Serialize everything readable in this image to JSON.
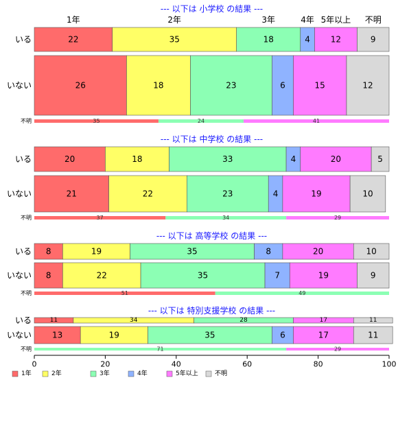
{
  "chart_data": {
    "type": "bar",
    "orientation": "horizontal",
    "stacked": "percent",
    "x_axis": {
      "range": [
        0,
        100
      ],
      "ticks": [
        "0",
        "20",
        "40",
        "60",
        "80",
        "100"
      ]
    },
    "grid": false,
    "categories": [
      "1年",
      "2年",
      "3年",
      "4年",
      "5年以上",
      "不明"
    ],
    "colors": [
      "#ff6b6b",
      "#ffff66",
      "#8cffb4",
      "#8fb3ff",
      "#ff7bff",
      "#d9d9d9"
    ],
    "legend": {
      "position": "bottom-left",
      "labels": [
        "1年",
        "2年",
        "3年",
        "4年",
        "5年以上",
        "不明"
      ]
    },
    "top_labels": [
      "1年",
      "2年",
      "3年",
      "4年",
      "5年以上",
      "不明"
    ],
    "panels": [
      {
        "title": "--- 以下は 小学校 の結果 ---",
        "rows": [
          {
            "label": "いる",
            "weight": 0.91,
            "values": [
              22,
              35,
              18,
              4,
              12,
              9
            ]
          },
          {
            "label": "いない",
            "weight": 1.67,
            "values": [
              26,
              18,
              23,
              6,
              15,
              12
            ]
          },
          {
            "label": "不明",
            "thin": true,
            "values": [
              35,
              0,
              24,
              0,
              41,
              0
            ],
            "shown": [
              "35",
              "",
              "24",
              "",
              "41",
              ""
            ]
          }
        ]
      },
      {
        "title": "--- 以下は 中学校 の結果 ---",
        "rows": [
          {
            "label": "いる",
            "weight": 1.0,
            "values": [
              20,
              18,
              33,
              4,
              20,
              5
            ]
          },
          {
            "label": "いない",
            "weight": 1.5,
            "values": [
              21,
              22,
              23,
              4,
              19,
              10
            ]
          },
          {
            "label": "不明",
            "thin": true,
            "values": [
              37,
              0,
              34,
              0,
              29,
              0
            ],
            "shown": [
              "37",
              "",
              "34",
              "",
              "29",
              ""
            ]
          }
        ]
      },
      {
        "title": "--- 以下は 高等学校 の結果 ---",
        "rows": [
          {
            "label": "いる",
            "weight": 1.0,
            "values": [
              8,
              19,
              35,
              8,
              20,
              10
            ]
          },
          {
            "label": "いない",
            "weight": 1.55,
            "values": [
              8,
              22,
              35,
              7,
              19,
              9
            ]
          },
          {
            "label": "不明",
            "thin": true,
            "values": [
              51,
              0,
              49,
              0,
              0,
              0
            ],
            "shown": [
              "51",
              "",
              "49",
              "",
              "",
              ""
            ]
          }
        ]
      },
      {
        "title": "--- 以下は 特別支援学校 の結果 ---",
        "rows": [
          {
            "label": "いる",
            "weight": 0.32,
            "values": [
              11,
              34,
              28,
              0,
              17,
              11
            ],
            "shown": [
              "11",
              "34",
              "28",
              "",
              "17",
              "11"
            ]
          },
          {
            "label": "いない",
            "weight": 1.0,
            "values": [
              13,
              19,
              35,
              6,
              17,
              11
            ]
          },
          {
            "label": "不明",
            "thin": true,
            "values": [
              0,
              0,
              71,
              0,
              29,
              0
            ],
            "shown": [
              "",
              "",
              "71",
              "",
              "29",
              ""
            ]
          }
        ]
      }
    ]
  }
}
